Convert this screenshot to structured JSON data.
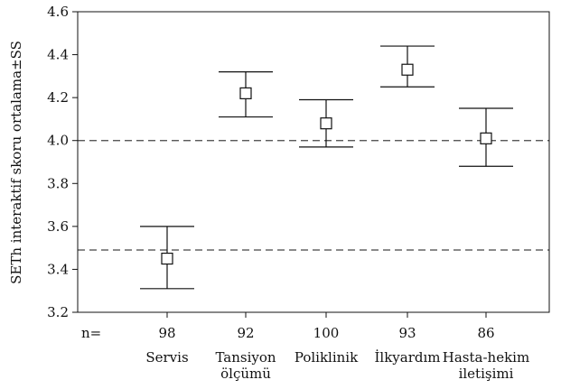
{
  "chart_data": {
    "type": "errorbar",
    "ylabel": "SETh interaktif skoru ortalama±SS",
    "ylim": [
      3.2,
      4.6
    ],
    "yticks": [
      "3.2",
      "3.4",
      "3.6",
      "3.8",
      "4.0",
      "4.2",
      "4.4",
      "4.6"
    ],
    "n_prefix": "n=",
    "categories": [
      {
        "label_lines": [
          "Servis"
        ],
        "n": "98",
        "mean": 3.45,
        "lower": 3.31,
        "upper": 3.6
      },
      {
        "label_lines": [
          "Tansiyon",
          "ölçümü"
        ],
        "n": "92",
        "mean": 4.22,
        "lower": 4.11,
        "upper": 4.32
      },
      {
        "label_lines": [
          "Poliklinik"
        ],
        "n": "100",
        "mean": 4.08,
        "lower": 3.97,
        "upper": 4.19
      },
      {
        "label_lines": [
          "İlkyardım"
        ],
        "n": "93",
        "mean": 4.33,
        "lower": 4.25,
        "upper": 4.44
      },
      {
        "label_lines": [
          "Hasta-hekim",
          "iletişimi"
        ],
        "n": "86",
        "mean": 4.01,
        "lower": 3.88,
        "upper": 4.15
      }
    ],
    "reference_lines": [
      4.0,
      3.49
    ],
    "grid": false,
    "colors": {
      "line": "#111111",
      "reference": "#444444"
    }
  }
}
